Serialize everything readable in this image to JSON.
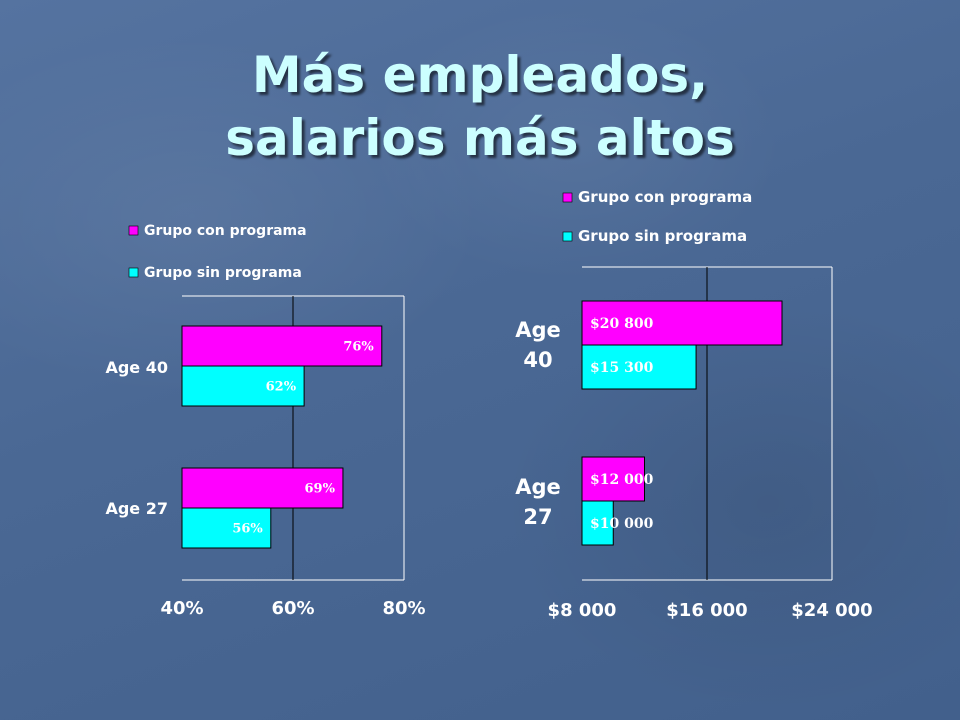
{
  "slide": {
    "title_line1": "Más empleados,",
    "title_line2": "salarios más altos"
  },
  "colors": {
    "con": "#ff00ff",
    "sin": "#00ffff",
    "title": "#ccffff",
    "text": "#ffffff"
  },
  "chart_data": [
    {
      "type": "bar",
      "orientation": "horizontal",
      "categories": [
        "Age 40",
        "Age 27"
      ],
      "series": [
        {
          "name": "Grupo con programa",
          "values": [
            76,
            69
          ],
          "labels": [
            "76%",
            "69%"
          ],
          "color": "#ff00ff"
        },
        {
          "name": "Grupo sin programa",
          "values": [
            62,
            56
          ],
          "labels": [
            "62%",
            "56%"
          ],
          "color": "#00ffff"
        }
      ],
      "xlim": [
        40,
        80
      ],
      "xticks": [
        40,
        60,
        80
      ],
      "xtick_labels": [
        "40%",
        "60%",
        "80%"
      ],
      "grid": true,
      "legend": "top"
    },
    {
      "type": "bar",
      "orientation": "horizontal",
      "categories": [
        "Age 40",
        "Age 27"
      ],
      "category_labels": [
        [
          "Age",
          "40"
        ],
        [
          "Age",
          "27"
        ]
      ],
      "series": [
        {
          "name": "Grupo con programa",
          "values": [
            20800,
            12000
          ],
          "labels": [
            "$20 800",
            "$12 000"
          ],
          "color": "#ff00ff"
        },
        {
          "name": "Grupo sin programa",
          "values": [
            15300,
            10000
          ],
          "labels": [
            "$15 300",
            "$10 000"
          ],
          "color": "#00ffff"
        }
      ],
      "xlim": [
        8000,
        24000
      ],
      "xticks": [
        8000,
        16000,
        24000
      ],
      "xtick_labels": [
        "$8 000",
        "$16 000",
        "$24 000"
      ],
      "grid": true,
      "legend": "top"
    }
  ]
}
